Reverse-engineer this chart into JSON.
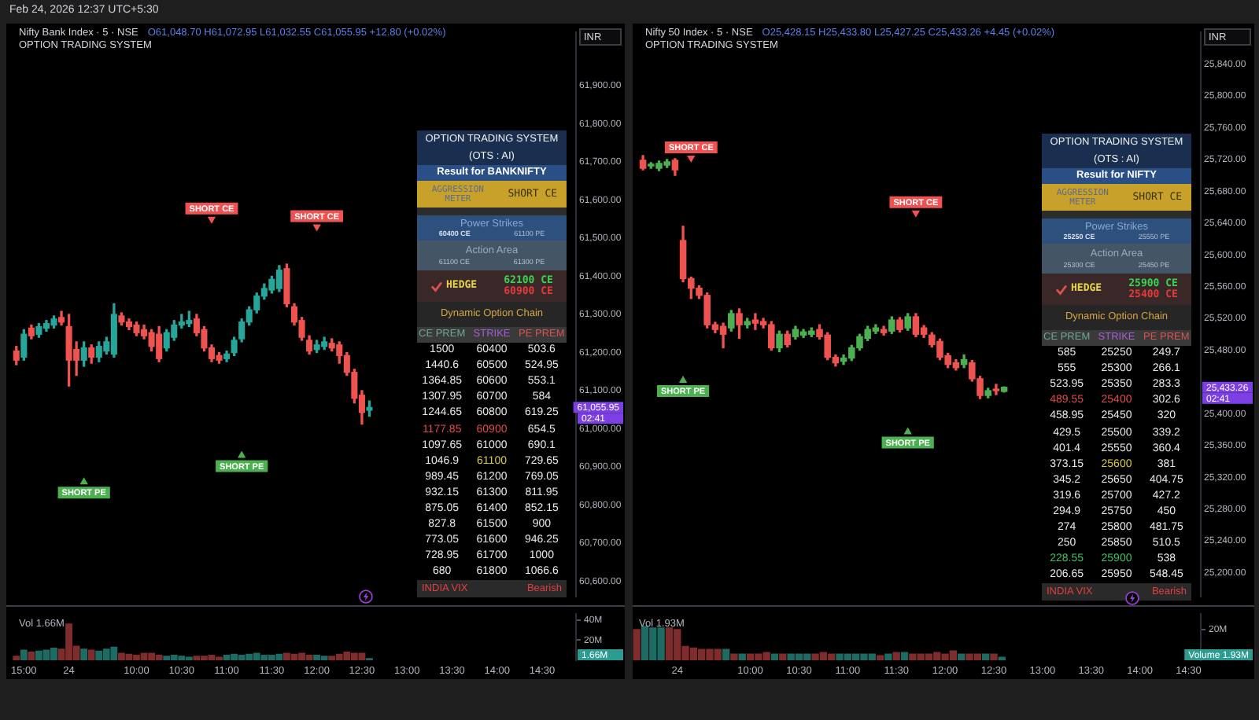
{
  "chart_data": [
    {
      "type": "other",
      "title": "Feb 24, 2026 12:37 UTC+5:30"
    },
    {
      "type": "candlestick",
      "title": "Nifty Bank Index · 5 · NSE",
      "subtitle": "O61,048.70 H61,072.95 L61,032.55 C61,055.95 +12.80 (+0.02%)",
      "ylabel": "INR",
      "categories": [
        null,
        null,
        null,
        null,
        null,
        null,
        null,
        null,
        null,
        null,
        null,
        null,
        null,
        null,
        null,
        null,
        null,
        null,
        null,
        null,
        null,
        null,
        null,
        null,
        null,
        null,
        null,
        null,
        null,
        null,
        null,
        null,
        null,
        null,
        null,
        null,
        null,
        null,
        null,
        null,
        null,
        null,
        null,
        null,
        null,
        null,
        null,
        null,
        null,
        null,
        null,
        null,
        null,
        null,
        null,
        null,
        null,
        null,
        null,
        null,
        null,
        null,
        null,
        null,
        null,
        null,
        null,
        null,
        null,
        null,
        null,
        null,
        null,
        null,
        null
      ],
      "ohlc": [
        [
          61204,
          61216,
          61168,
          61180
        ],
        [
          61188,
          61260,
          61180,
          61248
        ],
        [
          61264,
          61272,
          61236,
          61244
        ],
        [
          61248,
          61276,
          61240,
          61268
        ],
        [
          61264,
          61284,
          61256,
          61276
        ],
        [
          61272,
          61296,
          61264,
          61288
        ],
        [
          61292,
          61308,
          61272,
          61280
        ],
        [
          61268,
          61300,
          61112,
          61180
        ],
        [
          61208,
          61228,
          61140,
          61180
        ],
        [
          61180,
          61228,
          61164,
          61212
        ],
        [
          61212,
          61220,
          61172,
          61188
        ],
        [
          61188,
          61228,
          61176,
          61216
        ],
        [
          61204,
          61240,
          61196,
          61228
        ],
        [
          61196,
          61328,
          61188,
          61300
        ],
        [
          61296,
          61304,
          61272,
          61280
        ],
        [
          61280,
          61288,
          61260,
          61268
        ],
        [
          61272,
          61280,
          61244,
          61252
        ],
        [
          61260,
          61272,
          61236,
          61244
        ],
        [
          61252,
          61260,
          61204,
          61216
        ],
        [
          61248,
          61268,
          61176,
          61184
        ],
        [
          61212,
          61260,
          61204,
          61252
        ],
        [
          61240,
          61284,
          61232,
          61272
        ],
        [
          61272,
          61300,
          61264,
          61280
        ],
        [
          61276,
          61308,
          61268,
          61284
        ],
        [
          61288,
          61300,
          61244,
          61252
        ],
        [
          61260,
          61268,
          61204,
          61212
        ],
        [
          61212,
          61220,
          61176,
          61184
        ],
        [
          61192,
          61200,
          61172,
          61180
        ],
        [
          61184,
          61204,
          61176,
          61196
        ],
        [
          61200,
          61240,
          61192,
          61232
        ],
        [
          61236,
          61288,
          61228,
          61280
        ],
        [
          61280,
          61320,
          61272,
          61312
        ],
        [
          61312,
          61356,
          61304,
          61348
        ],
        [
          61348,
          61380,
          61340,
          61368
        ],
        [
          61364,
          61400,
          61356,
          61392
        ],
        [
          61368,
          61428,
          61360,
          61416
        ],
        [
          61420,
          61432,
          61320,
          61328
        ],
        [
          61320,
          61328,
          61272,
          61280
        ],
        [
          61284,
          61292,
          61232,
          61240
        ],
        [
          61232,
          61244,
          61196,
          61204
        ],
        [
          61208,
          61232,
          61200,
          61220
        ],
        [
          61216,
          61240,
          61208,
          61228
        ],
        [
          61224,
          61236,
          61204,
          61212
        ],
        [
          61220,
          61228,
          61172,
          61192
        ],
        [
          61192,
          61200,
          61140,
          61148
        ],
        [
          61148,
          61156,
          61068,
          61080
        ],
        [
          61088,
          61100,
          61012,
          61043
        ],
        [
          61048.7,
          61072.95,
          61032.55,
          61055.95
        ],
        null,
        null,
        null,
        null,
        null,
        null,
        null,
        null,
        null,
        null,
        null,
        null,
        null,
        null,
        null,
        null,
        null,
        null,
        null,
        null,
        null,
        null,
        null,
        null,
        null,
        null,
        null
      ],
      "colors": [
        "#ef5350",
        "#26a69a",
        "#ef5350",
        "#26a69a",
        "#26a69a",
        "#26a69a",
        "#ef5350",
        "#ef5350",
        "#ef5350",
        "#26a69a",
        "#ef5350",
        "#26a69a",
        "#26a69a",
        "#26a69a",
        "#ef5350",
        "#ef5350",
        "#ef5350",
        "#ef5350",
        "#ef5350",
        "#ef5350",
        "#26a69a",
        "#26a69a",
        "#26a69a",
        "#26a69a",
        "#ef5350",
        "#ef5350",
        "#ef5350",
        "#ef5350",
        "#26a69a",
        "#26a69a",
        "#26a69a",
        "#26a69a",
        "#26a69a",
        "#26a69a",
        "#26a69a",
        "#26a69a",
        "#ef5350",
        "#ef5350",
        "#ef5350",
        "#ef5350",
        "#26a69a",
        "#26a69a",
        "#ef5350",
        "#ef5350",
        "#ef5350",
        "#ef5350",
        "#ef5350",
        "#26a69a",
        null,
        null,
        null,
        null,
        null,
        null,
        null,
        null,
        null,
        null,
        null,
        null,
        null,
        null,
        null,
        null,
        null,
        null,
        null,
        null,
        null,
        null,
        null,
        null,
        null,
        null,
        null
      ],
      "series": [
        {
          "type": "scatter",
          "name": "SHORT CE",
          "color": "#f05252",
          "values": [
            null,
            null,
            null,
            null,
            null,
            null,
            null,
            null,
            null,
            null,
            null,
            null,
            null,
            null,
            null,
            null,
            null,
            null,
            null,
            null,
            null,
            null,
            null,
            null,
            null,
            null,
            61550,
            null,
            null,
            null,
            null,
            null,
            null,
            null,
            null,
            null,
            null,
            null,
            null,
            null,
            61530,
            null,
            null,
            null,
            null,
            null,
            null,
            null,
            null,
            null,
            null,
            null,
            null,
            null,
            null,
            null,
            null,
            null,
            null,
            null,
            null,
            null,
            null,
            null,
            null,
            null,
            null,
            null,
            null,
            null,
            null,
            null,
            null,
            null,
            null
          ]
        },
        {
          "type": "scatter",
          "name": "SHORT PE",
          "color": "#4caf50",
          "values": [
            null,
            null,
            null,
            null,
            null,
            null,
            null,
            null,
            null,
            60860,
            null,
            null,
            null,
            null,
            null,
            null,
            null,
            null,
            null,
            null,
            null,
            null,
            null,
            null,
            null,
            null,
            null,
            null,
            null,
            null,
            60930,
            null,
            null,
            null,
            null,
            null,
            null,
            null,
            null,
            null,
            null,
            null,
            null,
            null,
            null,
            null,
            null,
            null,
            null,
            null,
            null,
            null,
            null,
            null,
            null,
            null,
            null,
            null,
            null,
            null,
            null,
            null,
            null,
            null,
            null,
            null,
            null,
            null,
            null,
            null,
            null,
            null,
            null,
            null,
            null
          ]
        }
      ],
      "marker": "triangle",
      "ylim": [
        60560,
        62040
      ],
      "yticks": [
        {
          "value": 60600,
          "label": "60,600.00"
        },
        {
          "value": 60700,
          "label": "60,700.00"
        },
        {
          "value": 60800,
          "label": "60,800.00"
        },
        {
          "value": 60900,
          "label": "60,900.00"
        },
        {
          "value": 61000,
          "label": "61,000.00"
        },
        {
          "value": 61100,
          "label": "61,100.00"
        },
        {
          "value": 61200,
          "label": "61,200.00"
        },
        {
          "value": 61300,
          "label": "61,300.00"
        },
        {
          "value": 61400,
          "label": "61,400.00"
        },
        {
          "value": 61500,
          "label": "61,500.00"
        },
        {
          "value": 61600,
          "label": "61,600.00"
        },
        {
          "value": 61700,
          "label": "61,700.00"
        },
        {
          "value": 61800,
          "label": "61,800.00"
        },
        {
          "value": 61900,
          "label": "61,900.00"
        }
      ],
      "tick_labels": "y",
      "annotations": [
        "OPTION TRADING SYSTEM",
        "61,055.95",
        "02:41"
      ]
    },
    {
      "type": "bar",
      "categories": [
        null,
        "15:00",
        null,
        null,
        null,
        null,
        null,
        "24",
        null,
        null,
        null,
        null,
        null,
        null,
        null,
        null,
        "10:00",
        null,
        null,
        null,
        null,
        null,
        "10:30",
        null,
        null,
        null,
        null,
        null,
        "11:00",
        null,
        null,
        null,
        null,
        null,
        "11:30",
        null,
        null,
        null,
        null,
        null,
        "12:00",
        null,
        null,
        null,
        null,
        null,
        "12:30",
        null,
        null,
        null,
        null,
        null,
        "13:00",
        null,
        null,
        null,
        null,
        null,
        "13:30",
        null,
        null,
        null,
        null,
        null,
        "14:00",
        null,
        null,
        null,
        null,
        null,
        "14:30",
        null,
        null,
        null,
        null
      ],
      "values": [
        4,
        10,
        8,
        9,
        10,
        12,
        11,
        36,
        14,
        11,
        10,
        9,
        11,
        13,
        7,
        6,
        5,
        7,
        7,
        5,
        4,
        5,
        4,
        3,
        4,
        4,
        5,
        3,
        5,
        6,
        5,
        6,
        7,
        5,
        5,
        6,
        7,
        6,
        7,
        5,
        5,
        4,
        4,
        6,
        8,
        7,
        7,
        1.66,
        null,
        null,
        null,
        null,
        null,
        null,
        null,
        null,
        null,
        null,
        null,
        null,
        null,
        null,
        null,
        null,
        null,
        null,
        null,
        null,
        null,
        null,
        null,
        null,
        null,
        null,
        null
      ],
      "colors": [
        "#7e2c2c",
        "#1e6b64",
        "#7e2c2c",
        "#1e6b64",
        "#1e6b64",
        "#1e6b64",
        "#7e2c2c",
        "#7e2c2c",
        "#7e2c2c",
        "#1e6b64",
        "#7e2c2c",
        "#1e6b64",
        "#1e6b64",
        "#1e6b64",
        "#7e2c2c",
        "#7e2c2c",
        "#7e2c2c",
        "#7e2c2c",
        "#7e2c2c",
        "#7e2c2c",
        "#1e6b64",
        "#1e6b64",
        "#1e6b64",
        "#1e6b64",
        "#7e2c2c",
        "#7e2c2c",
        "#7e2c2c",
        "#7e2c2c",
        "#1e6b64",
        "#1e6b64",
        "#1e6b64",
        "#1e6b64",
        "#1e6b64",
        "#1e6b64",
        "#1e6b64",
        "#1e6b64",
        "#7e2c2c",
        "#7e2c2c",
        "#7e2c2c",
        "#7e2c2c",
        "#1e6b64",
        "#1e6b64",
        "#7e2c2c",
        "#7e2c2c",
        "#7e2c2c",
        "#7e2c2c",
        "#7e2c2c",
        "#1e6b64",
        null,
        null,
        null,
        null,
        null,
        null,
        null,
        null,
        null,
        null,
        null,
        null,
        null,
        null,
        null,
        null,
        null,
        null,
        null,
        null,
        null,
        null,
        null,
        null,
        null,
        null,
        null
      ],
      "ylim": [
        0,
        46
      ],
      "yticks": [
        {
          "value": 20,
          "label": "20M"
        },
        {
          "value": 40,
          "label": "40M"
        }
      ],
      "annotations": [
        "Vol 1.66M",
        "1.66M"
      ]
    },
    {
      "type": "other",
      "title": "OPTION TRADING SYSTEM",
      "subtitle": "(OTS : AI)",
      "categories": [
        "CE PREM",
        "STRIKE",
        "PE PREM"
      ],
      "annotations": [
        "Result for BANKNIFTY",
        "AGGRESSION METER",
        "SHORT CE",
        "Power Strikes",
        "60400 CE",
        "61100 PE",
        "Action Area",
        "61100 CE",
        "61300 PE",
        "HEDGE",
        "62100 CE",
        "60900 CE",
        "Dynamic Option Chain",
        "INDIA VIX",
        "Bearish",
        "1500",
        "60400",
        "503.6",
        "1440.6",
        "60500",
        "524.95",
        "1364.85",
        "60600",
        "553.1",
        "1307.95",
        "60700",
        "584",
        "1244.65",
        "60800",
        "619.25",
        "1177.85",
        "60900",
        "654.5",
        "1097.65",
        "61000",
        "690.1",
        "1046.9",
        "61100",
        "729.65",
        "989.45",
        "61200",
        "769.05",
        "932.15",
        "61300",
        "811.95",
        "875.05",
        "61400",
        "852.15",
        "827.8",
        "61500",
        "900",
        "773.05",
        "61600",
        "946.25",
        "728.95",
        "61700",
        "1000",
        "680",
        "61800",
        "1066.6"
      ],
      "colors": [
        null,
        null,
        null,
        null,
        null,
        null,
        null,
        null,
        null,
        null,
        "#39d353",
        "#e23b3b",
        null,
        null,
        null,
        null,
        null,
        null,
        null,
        null,
        null,
        null,
        null,
        null,
        null,
        null,
        null,
        null,
        null,
        null,
        "#e04b4b",
        "#e04b4b",
        null,
        null,
        null,
        null,
        null,
        "#d8c64a",
        null,
        null,
        null,
        null,
        null,
        null,
        null,
        null,
        null,
        null,
        null,
        null,
        null,
        null,
        null,
        null,
        null,
        null,
        null,
        null,
        null,
        null
      ]
    },
    {
      "type": "candlestick",
      "title": "Nifty 50 Index · 5 · NSE",
      "subtitle": "O25,428.15 H25,433.80 L25,427.25 C25,433.26 +4.45 (+0.02%)",
      "ylabel": "INR",
      "categories": [
        null,
        null,
        null,
        null,
        null,
        null,
        null,
        null,
        null,
        null,
        null,
        null,
        null,
        null,
        null,
        null,
        null,
        null,
        null,
        null,
        null,
        null,
        null,
        null,
        null,
        null,
        null,
        null,
        null,
        null,
        null,
        null,
        null,
        null,
        null,
        null,
        null,
        null,
        null,
        null,
        null,
        null,
        null,
        null,
        null,
        null,
        null,
        null,
        null,
        null,
        null,
        null,
        null,
        null,
        null,
        null,
        null,
        null,
        null,
        null,
        null,
        null,
        null,
        null,
        null,
        null,
        null,
        null,
        null,
        null
      ],
      "ohlc": [
        [
          25719,
          25725,
          25707,
          25709
        ],
        [
          25712,
          25716,
          25709,
          25713
        ],
        [
          25709,
          25718,
          25706,
          25715
        ],
        [
          25713,
          25720,
          25710,
          25717
        ],
        [
          25719,
          25721,
          25700,
          25707
        ],
        [
          25618,
          25636,
          25566,
          25570
        ],
        [
          25570,
          25572,
          25545,
          25558
        ],
        [
          25558,
          25561,
          25545,
          25549
        ],
        [
          25549,
          25552,
          25508,
          25512
        ],
        [
          25512,
          25515,
          25502,
          25506
        ],
        [
          25510,
          25514,
          25483,
          25500
        ],
        [
          25508,
          25530,
          25504,
          25526
        ],
        [
          25526,
          25532,
          25495,
          25512
        ],
        [
          25512,
          25520,
          25508,
          25516
        ],
        [
          25518,
          25526,
          25506,
          25514
        ],
        [
          25516,
          25520,
          25508,
          25512
        ],
        [
          25512,
          25516,
          25480,
          25483
        ],
        [
          25483,
          25504,
          25478,
          25500
        ],
        [
          25500,
          25504,
          25484,
          25487
        ],
        [
          25497,
          25510,
          25494,
          25506
        ],
        [
          25499,
          25506,
          25496,
          25503
        ],
        [
          25500,
          25508,
          25497,
          25504
        ],
        [
          25506,
          25512,
          25494,
          25497
        ],
        [
          25499,
          25502,
          25468,
          25471
        ],
        [
          25471,
          25474,
          25460,
          25464
        ],
        [
          25466,
          25474,
          25462,
          25470
        ],
        [
          25470,
          25486,
          25467,
          25483
        ],
        [
          25483,
          25500,
          25480,
          25497
        ],
        [
          25495,
          25510,
          25492,
          25506
        ],
        [
          25504,
          25512,
          25501,
          25508
        ],
        [
          25506,
          25510,
          25499,
          25502
        ],
        [
          25504,
          25522,
          25501,
          25518
        ],
        [
          25518,
          25521,
          25503,
          25506
        ],
        [
          25508,
          25526,
          25505,
          25522
        ],
        [
          25522,
          25526,
          25497,
          25500
        ],
        [
          25508,
          25511,
          25496,
          25500
        ],
        [
          25499,
          25502,
          25484,
          25487
        ],
        [
          25491,
          25494,
          25468,
          25471
        ],
        [
          25473,
          25476,
          25458,
          25462
        ],
        [
          25464,
          25468,
          25455,
          25458
        ],
        [
          25462,
          25474,
          25458,
          25468
        ],
        [
          25464,
          25467,
          25441,
          25444
        ],
        [
          25444,
          25447,
          25419,
          25423
        ],
        [
          25423,
          25432,
          25420,
          25429
        ],
        [
          25431,
          25437,
          25424,
          25429
        ],
        [
          25428.15,
          25433.8,
          25427.25,
          25433.26
        ],
        null,
        null,
        null,
        null,
        null,
        null,
        null,
        null,
        null,
        null,
        null,
        null,
        null,
        null,
        null,
        null,
        null,
        null,
        null,
        null,
        null,
        null,
        null,
        null
      ],
      "colors": [
        "#ef5350",
        "#4caf50",
        "#4caf50",
        "#4caf50",
        "#ef5350",
        "#ef5350",
        "#ef5350",
        "#ef5350",
        "#ef5350",
        "#ef5350",
        "#ef5350",
        "#4caf50",
        "#ef5350",
        "#4caf50",
        "#ef5350",
        "#ef5350",
        "#ef5350",
        "#4caf50",
        "#ef5350",
        "#4caf50",
        "#4caf50",
        "#4caf50",
        "#ef5350",
        "#ef5350",
        "#ef5350",
        "#4caf50",
        "#4caf50",
        "#4caf50",
        "#4caf50",
        "#4caf50",
        "#ef5350",
        "#4caf50",
        "#ef5350",
        "#4caf50",
        "#ef5350",
        "#ef5350",
        "#ef5350",
        "#ef5350",
        "#ef5350",
        "#ef5350",
        "#4caf50",
        "#ef5350",
        "#ef5350",
        "#4caf50",
        "#ef5350",
        "#4caf50",
        null,
        null,
        null,
        null,
        null,
        null,
        null,
        null,
        null,
        null,
        null,
        null,
        null,
        null,
        null,
        null,
        null,
        null,
        null,
        null,
        null,
        null,
        null,
        null
      ],
      "series": [
        {
          "type": "scatter",
          "name": "SHORT CE",
          "color": "#f05252",
          "values": [
            null,
            null,
            null,
            null,
            null,
            null,
            25722,
            null,
            null,
            null,
            null,
            null,
            null,
            null,
            null,
            null,
            null,
            null,
            null,
            null,
            null,
            null,
            null,
            null,
            null,
            null,
            null,
            null,
            null,
            null,
            null,
            null,
            null,
            null,
            25653,
            null,
            null,
            null,
            null,
            null,
            null,
            null,
            null,
            null,
            null,
            null,
            null,
            null,
            null,
            null,
            null,
            null,
            null,
            null,
            null,
            null,
            null,
            null,
            null,
            null,
            null,
            null,
            null,
            null,
            null,
            null,
            null,
            null,
            null,
            null
          ]
        },
        {
          "type": "scatter",
          "name": "SHORT PE",
          "color": "#4caf50",
          "values": [
            null,
            null,
            null,
            null,
            null,
            25442,
            null,
            null,
            null,
            null,
            null,
            null,
            null,
            null,
            null,
            null,
            null,
            null,
            null,
            null,
            null,
            null,
            null,
            null,
            null,
            null,
            null,
            null,
            null,
            null,
            null,
            null,
            null,
            25377,
            null,
            null,
            null,
            null,
            null,
            null,
            null,
            null,
            null,
            null,
            null,
            null,
            null,
            null,
            null,
            null,
            null,
            null,
            null,
            null,
            null,
            null,
            null,
            null,
            null,
            null,
            null,
            null,
            null,
            null,
            null,
            null,
            null,
            null,
            null,
            null
          ]
        }
      ],
      "marker": "triangle",
      "ylim": [
        25170,
        25880
      ],
      "yticks": [
        {
          "value": 25200,
          "label": "25,200.00"
        },
        {
          "value": 25240,
          "label": "25,240.00"
        },
        {
          "value": 25280,
          "label": "25,280.00"
        },
        {
          "value": 25320,
          "label": "25,320.00"
        },
        {
          "value": 25360,
          "label": "25,360.00"
        },
        {
          "value": 25400,
          "label": "25,400.00"
        },
        {
          "value": 25480,
          "label": "25,480.00"
        },
        {
          "value": 25520,
          "label": "25,520.00"
        },
        {
          "value": 25560,
          "label": "25,560.00"
        },
        {
          "value": 25600,
          "label": "25,600.00"
        },
        {
          "value": 25640,
          "label": "25,640.00"
        },
        {
          "value": 25680,
          "label": "25,680.00"
        },
        {
          "value": 25720,
          "label": "25,720.00"
        },
        {
          "value": 25760,
          "label": "25,760.00"
        },
        {
          "value": 25800,
          "label": "25,800.00"
        },
        {
          "value": 25840,
          "label": "25,840.00"
        }
      ],
      "tick_labels": "y",
      "annotations": [
        "OPTION TRADING SYSTEM",
        "25,433.26",
        "02:41"
      ]
    },
    {
      "type": "bar",
      "categories": [
        null,
        null,
        null,
        null,
        null,
        "24",
        null,
        null,
        null,
        null,
        null,
        null,
        null,
        null,
        "10:00",
        null,
        null,
        null,
        null,
        null,
        "10:30",
        null,
        null,
        null,
        null,
        null,
        "11:00",
        null,
        null,
        null,
        null,
        null,
        "11:30",
        null,
        null,
        null,
        null,
        null,
        "12:00",
        null,
        null,
        null,
        null,
        null,
        "12:30",
        null,
        null,
        null,
        null,
        null,
        "13:00",
        null,
        null,
        null,
        null,
        null,
        "13:30",
        null,
        null,
        null,
        null,
        null,
        "14:00",
        null,
        null,
        null,
        null,
        null,
        "14:30",
        null
      ],
      "values": [
        20,
        22,
        21,
        21,
        21,
        20,
        9,
        8,
        7,
        7,
        7,
        7,
        4,
        4,
        4,
        4,
        5,
        4,
        4,
        4,
        4,
        4,
        4,
        5,
        4,
        4,
        4,
        4,
        4,
        4,
        3,
        4,
        5,
        5,
        4,
        4,
        4,
        5,
        4,
        6,
        4,
        4,
        4,
        4,
        4,
        1.93,
        null,
        null,
        null,
        null,
        null,
        null,
        null,
        null,
        null,
        null,
        null,
        null,
        null,
        null,
        null,
        null,
        null,
        null,
        null,
        null,
        null,
        null,
        null,
        null
      ],
      "colors": [
        "#7e2c2c",
        "#1e6b64",
        "#1e6b64",
        "#1e6b64",
        "#7e2c2c",
        "#7e2c2c",
        "#7e2c2c",
        "#7e2c2c",
        "#7e2c2c",
        "#7e2c2c",
        "#7e2c2c",
        "#1e6b64",
        "#7e2c2c",
        "#1e6b64",
        "#7e2c2c",
        "#7e2c2c",
        "#7e2c2c",
        "#1e6b64",
        "#7e2c2c",
        "#1e6b64",
        "#1e6b64",
        "#1e6b64",
        "#7e2c2c",
        "#7e2c2c",
        "#7e2c2c",
        "#1e6b64",
        "#1e6b64",
        "#1e6b64",
        "#1e6b64",
        "#1e6b64",
        "#7e2c2c",
        "#1e6b64",
        "#7e2c2c",
        "#1e6b64",
        "#7e2c2c",
        "#7e2c2c",
        "#7e2c2c",
        "#7e2c2c",
        "#7e2c2c",
        "#7e2c2c",
        "#1e6b64",
        "#7e2c2c",
        "#7e2c2c",
        "#1e6b64",
        "#7e2c2c",
        "#1e6b64",
        null,
        null,
        null,
        null,
        null,
        null,
        null,
        null,
        null,
        null,
        null,
        null,
        null,
        null,
        null,
        null,
        null,
        null,
        null,
        null,
        null,
        null,
        null,
        null
      ],
      "ylim": [
        0,
        30
      ],
      "yticks": [
        {
          "value": 20,
          "label": "20M"
        }
      ],
      "annotations": [
        "Vol 1.93M",
        "Volume 1.93M"
      ]
    },
    {
      "type": "other",
      "title": "OPTION TRADING SYSTEM",
      "subtitle": "(OTS : AI)",
      "categories": [
        "CE PREM",
        "STRIKE",
        "PE PREM"
      ],
      "annotations": [
        "Result for NIFTY",
        "AGGRESSION METER",
        "SHORT CE",
        "Power Strikes",
        "25250 CE",
        "25550 PE",
        "Action Area",
        "25300 CE",
        "25450 PE",
        "HEDGE",
        "25900 CE",
        "25400 CE",
        "Dynamic Option Chain",
        "INDIA VIX",
        "Bearish",
        "585",
        "25250",
        "249.7",
        "555",
        "25300",
        "266.1",
        "523.95",
        "25350",
        "283.3",
        "489.55",
        "25400",
        "302.6",
        "458.95",
        "25450",
        "320",
        "429.5",
        "25500",
        "339.2",
        "401.4",
        "25550",
        "360.4",
        "373.15",
        "25600",
        "381",
        "345.2",
        "25650",
        "404.75",
        "319.6",
        "25700",
        "427.2",
        "294.9",
        "25750",
        "450",
        "274",
        "25800",
        "481.75",
        "250",
        "25850",
        "510.5",
        "228.55",
        "25900",
        "538",
        "206.65",
        "25950",
        "548.45"
      ],
      "colors": [
        null,
        null,
        null,
        null,
        null,
        null,
        null,
        null,
        null,
        null,
        "#39d353",
        "#e23b3b",
        null,
        null,
        null,
        null,
        null,
        null,
        null,
        null,
        null,
        null,
        null,
        null,
        "#e04b4b",
        "#e04b4b",
        null,
        null,
        null,
        null,
        null,
        null,
        null,
        null,
        null,
        null,
        null,
        "#d8c64a",
        null,
        null,
        null,
        null,
        null,
        null,
        null,
        null,
        null,
        null,
        null,
        null,
        null,
        null,
        null,
        null,
        "#3fbf5f",
        "#3fbf5f",
        null,
        null,
        null,
        null
      ]
    }
  ]
}
